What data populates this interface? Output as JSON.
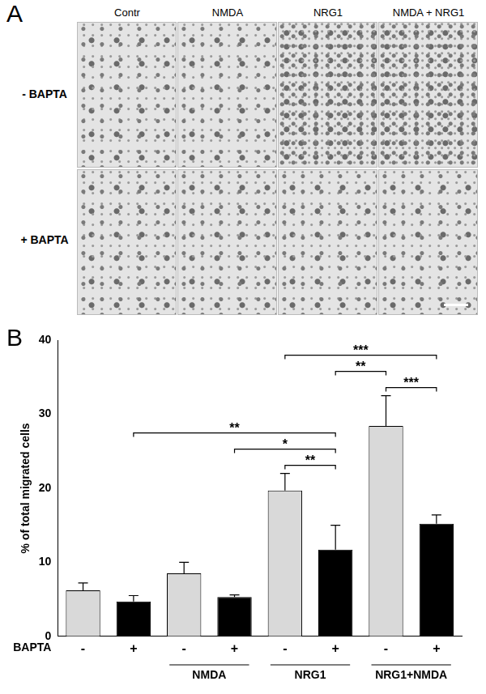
{
  "panel_a": {
    "label": "A",
    "columns": [
      "Contr",
      "NMDA",
      "NRG1",
      "NMDA + NRG1"
    ],
    "rows": [
      "- BAPTA",
      "+ BAPTA"
    ]
  },
  "chart_data": {
    "type": "bar",
    "panel_label": "B",
    "y_label": "% of total migrated cells",
    "x_label": "BAPTA",
    "categories": [
      "-",
      "+",
      "-",
      "+",
      "-",
      "+",
      "-",
      "+"
    ],
    "groups": [
      {
        "label": "NMDA",
        "from": 2,
        "to": 3
      },
      {
        "label": "NRG1",
        "from": 4,
        "to": 5
      },
      {
        "label": "NRG1+NMDA",
        "from": 6,
        "to": 7
      }
    ],
    "values": [
      6.2,
      4.7,
      8.5,
      5.3,
      19.7,
      11.7,
      28.4,
      15.2
    ],
    "errors": [
      1.0,
      0.8,
      1.5,
      0.3,
      2.3,
      3.3,
      4.1,
      1.2
    ],
    "colors": [
      "#d9d9d9",
      "#000000",
      "#d9d9d9",
      "#000000",
      "#d9d9d9",
      "#000000",
      "#d9d9d9",
      "#000000"
    ],
    "ylim": [
      0,
      40
    ],
    "yticks": [
      0,
      10,
      20,
      30,
      40
    ],
    "grid": false,
    "significance": [
      {
        "from": 4,
        "to": 5,
        "label": "**"
      },
      {
        "from": 3,
        "to": 5,
        "label": "*"
      },
      {
        "from": 1,
        "to": 5,
        "label": "**"
      },
      {
        "from": 6,
        "to": 7,
        "label": "***"
      },
      {
        "from": 5,
        "to": 6,
        "label": "**"
      },
      {
        "from": 4,
        "to": 7,
        "label": "***"
      }
    ]
  }
}
